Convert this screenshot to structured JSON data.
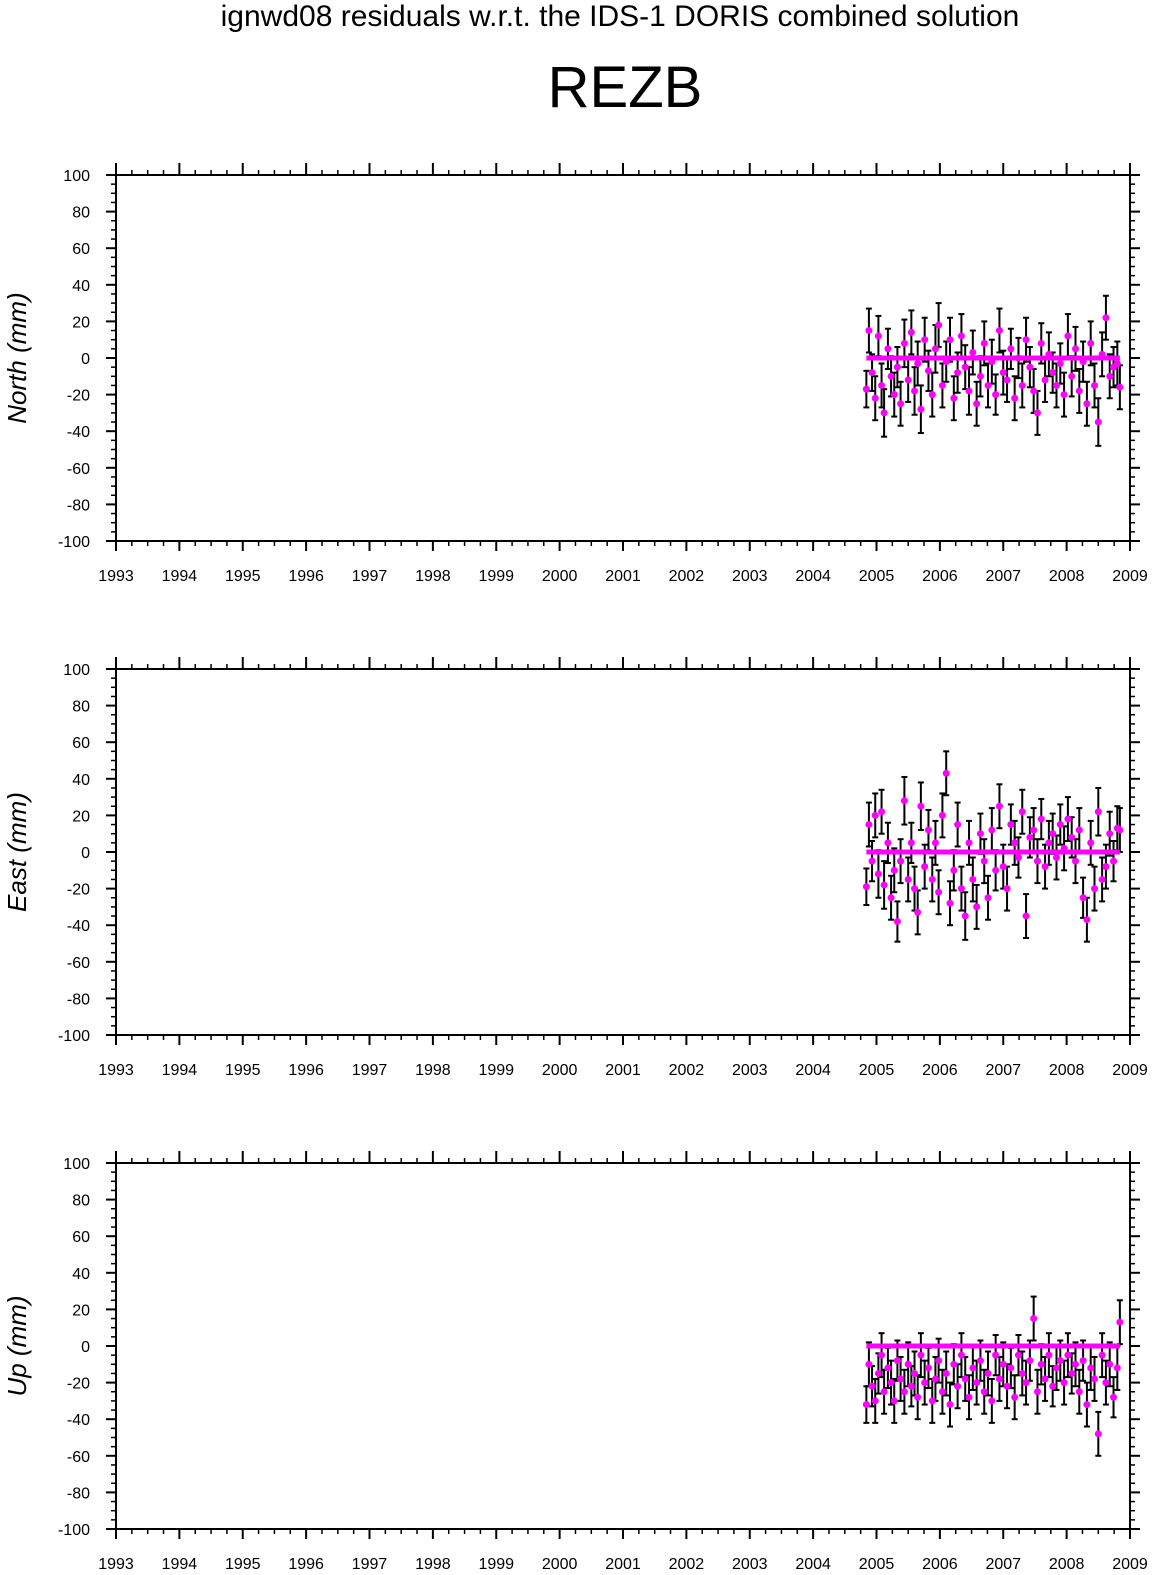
{
  "header": {
    "suptitle": "ignwd08 residuals w.r.t. the IDS-1 DORIS combined solution",
    "station": "REZB"
  },
  "colors": {
    "points": "#ff00ff",
    "errorbars": "#000000",
    "zero_line": "#ff00ff",
    "axes": "#000000"
  },
  "chart_data": [
    {
      "type": "scatter",
      "ylabel": "North (mm)",
      "xlim": [
        1993,
        2009
      ],
      "ylim": [
        -100,
        100
      ],
      "xticks": [
        "1993",
        "1994",
        "1995",
        "1996",
        "1997",
        "1998",
        "1999",
        "2000",
        "2001",
        "2002",
        "2003",
        "2004",
        "2005",
        "2006",
        "2007",
        "2008",
        "2009"
      ],
      "yticks": [
        "100",
        "80",
        "60",
        "40",
        "20",
        "0",
        "-20",
        "-40",
        "-60",
        "-80",
        "-100"
      ],
      "grid": false,
      "series": [
        {
          "x": [
            2004.84,
            2004.88,
            2004.93,
            2004.98,
            2005.03,
            2005.08,
            2005.12,
            2005.18,
            2005.23,
            2005.28,
            2005.33,
            2005.38,
            2005.44,
            2005.5,
            2005.55,
            2005.6,
            2005.65,
            2005.7,
            2005.76,
            2005.82,
            2005.88,
            2005.93,
            2005.98,
            2006.04,
            2006.1,
            2006.16,
            2006.22,
            2006.28,
            2006.34,
            2006.4,
            2006.46,
            2006.52,
            2006.58,
            2006.64,
            2006.7,
            2006.76,
            2006.82,
            2006.88,
            2006.94,
            2007.0,
            2007.06,
            2007.12,
            2007.18,
            2007.24,
            2007.3,
            2007.36,
            2007.42,
            2007.48,
            2007.54,
            2007.6,
            2007.66,
            2007.72,
            2007.78,
            2007.84,
            2007.9,
            2007.96,
            2008.02,
            2008.08,
            2008.14,
            2008.2,
            2008.26,
            2008.32,
            2008.38,
            2008.44,
            2008.5,
            2008.56,
            2008.62,
            2008.68,
            2008.74,
            2008.8,
            2008.84
          ],
          "y": [
            -17,
            15,
            -8,
            -22,
            12,
            -15,
            -30,
            5,
            -10,
            -20,
            -5,
            -25,
            8,
            -12,
            14,
            -18,
            -3,
            -28,
            10,
            -7,
            -20,
            5,
            18,
            -15,
            -2,
            10,
            -22,
            -8,
            12,
            -5,
            -18,
            3,
            -25,
            -10,
            8,
            -15,
            -2,
            -20,
            15,
            -8,
            -12,
            5,
            -22,
            0,
            -15,
            10,
            -5,
            -18,
            -30,
            8,
            -12,
            2,
            -8,
            -15,
            -3,
            -20,
            12,
            -10,
            5,
            -18,
            -2,
            -25,
            8,
            -15,
            -35,
            2,
            22,
            -10,
            -5,
            -3,
            -16
          ],
          "err": [
            10,
            12,
            10,
            12,
            11,
            12,
            13,
            11,
            11,
            12,
            11,
            12,
            13,
            12,
            12,
            13,
            12,
            13,
            12,
            11,
            12,
            13,
            12,
            12,
            11,
            12,
            12,
            11,
            12,
            12,
            13,
            12,
            12,
            11,
            12,
            12,
            12,
            11,
            12,
            12,
            12,
            11,
            12,
            11,
            12,
            12,
            11,
            12,
            12,
            11,
            12,
            12,
            11,
            12,
            11,
            12,
            12,
            11,
            12,
            12,
            11,
            12,
            12,
            12,
            13,
            12,
            12,
            12,
            11,
            12,
            12
          ]
        }
      ]
    },
    {
      "type": "scatter",
      "ylabel": "East (mm)",
      "xlim": [
        1993,
        2009
      ],
      "ylim": [
        -100,
        100
      ],
      "xticks": [
        "1993",
        "1994",
        "1995",
        "1996",
        "1997",
        "1998",
        "1999",
        "2000",
        "2001",
        "2002",
        "2003",
        "2004",
        "2005",
        "2006",
        "2007",
        "2008",
        "2009"
      ],
      "yticks": [
        "100",
        "80",
        "60",
        "40",
        "20",
        "0",
        "-20",
        "-40",
        "-60",
        "-80",
        "-100"
      ],
      "grid": false,
      "series": [
        {
          "x": [
            2004.84,
            2004.88,
            2004.93,
            2004.98,
            2005.03,
            2005.08,
            2005.12,
            2005.18,
            2005.23,
            2005.28,
            2005.33,
            2005.38,
            2005.44,
            2005.5,
            2005.55,
            2005.6,
            2005.65,
            2005.7,
            2005.76,
            2005.82,
            2005.88,
            2005.93,
            2005.98,
            2006.04,
            2006.1,
            2006.16,
            2006.22,
            2006.28,
            2006.34,
            2006.4,
            2006.46,
            2006.52,
            2006.58,
            2006.64,
            2006.7,
            2006.76,
            2006.82,
            2006.88,
            2006.94,
            2007.0,
            2007.06,
            2007.12,
            2007.18,
            2007.24,
            2007.3,
            2007.36,
            2007.42,
            2007.48,
            2007.54,
            2007.6,
            2007.66,
            2007.72,
            2007.78,
            2007.84,
            2007.9,
            2007.96,
            2008.02,
            2008.08,
            2008.14,
            2008.2,
            2008.26,
            2008.32,
            2008.38,
            2008.44,
            2008.5,
            2008.56,
            2008.62,
            2008.68,
            2008.74,
            2008.8,
            2008.84
          ],
          "y": [
            -19,
            15,
            -5,
            20,
            -12,
            22,
            -18,
            5,
            -25,
            -10,
            -38,
            -5,
            28,
            -15,
            5,
            -20,
            -33,
            25,
            -8,
            12,
            -15,
            5,
            -22,
            20,
            43,
            -28,
            -10,
            15,
            -20,
            -35,
            5,
            -15,
            -30,
            10,
            -5,
            -25,
            12,
            -10,
            25,
            -8,
            -20,
            15,
            5,
            -3,
            22,
            -35,
            8,
            12,
            -5,
            18,
            -8,
            5,
            10,
            -3,
            15,
            2,
            18,
            8,
            -5,
            12,
            -25,
            -37,
            5,
            -20,
            22,
            -15,
            -8,
            10,
            -5,
            13,
            12
          ],
          "err": [
            10,
            12,
            11,
            12,
            13,
            12,
            13,
            11,
            12,
            12,
            11,
            12,
            13,
            12,
            11,
            12,
            12,
            13,
            12,
            11,
            12,
            12,
            12,
            12,
            12,
            12,
            11,
            12,
            12,
            13,
            12,
            12,
            12,
            11,
            12,
            12,
            12,
            11,
            12,
            12,
            12,
            11,
            12,
            11,
            12,
            12,
            11,
            12,
            12,
            11,
            12,
            12,
            11,
            12,
            11,
            12,
            12,
            11,
            12,
            12,
            11,
            12,
            12,
            12,
            13,
            12,
            12,
            12,
            11,
            12,
            12
          ]
        }
      ]
    },
    {
      "type": "scatter",
      "ylabel": "Up (mm)",
      "xlim": [
        1993,
        2009
      ],
      "ylim": [
        -100,
        100
      ],
      "xticks": [
        "1993",
        "1994",
        "1995",
        "1996",
        "1997",
        "1998",
        "1999",
        "2000",
        "2001",
        "2002",
        "2003",
        "2004",
        "2005",
        "2006",
        "2007",
        "2008",
        "2009"
      ],
      "yticks": [
        "100",
        "80",
        "60",
        "40",
        "20",
        "0",
        "-20",
        "-40",
        "-60",
        "-80",
        "-100"
      ],
      "grid": false,
      "series": [
        {
          "x": [
            2004.84,
            2004.88,
            2004.93,
            2004.98,
            2005.03,
            2005.08,
            2005.12,
            2005.18,
            2005.23,
            2005.28,
            2005.33,
            2005.38,
            2005.44,
            2005.5,
            2005.55,
            2005.6,
            2005.65,
            2005.7,
            2005.76,
            2005.82,
            2005.88,
            2005.93,
            2005.98,
            2006.04,
            2006.1,
            2006.16,
            2006.22,
            2006.28,
            2006.34,
            2006.4,
            2006.46,
            2006.52,
            2006.58,
            2006.64,
            2006.7,
            2006.76,
            2006.82,
            2006.88,
            2006.94,
            2007.0,
            2007.06,
            2007.12,
            2007.18,
            2007.24,
            2007.3,
            2007.36,
            2007.42,
            2007.48,
            2007.54,
            2007.6,
            2007.66,
            2007.72,
            2007.78,
            2007.84,
            2007.9,
            2007.96,
            2008.02,
            2008.08,
            2008.14,
            2008.2,
            2008.26,
            2008.32,
            2008.38,
            2008.44,
            2008.5,
            2008.56,
            2008.62,
            2008.68,
            2008.74,
            2008.8,
            2008.84
          ],
          "y": [
            -32,
            -10,
            -22,
            -30,
            -15,
            -5,
            -25,
            -12,
            -20,
            -30,
            -8,
            -18,
            -25,
            -10,
            -22,
            -15,
            -28,
            -5,
            -20,
            -12,
            -30,
            -18,
            -8,
            -25,
            -15,
            -32,
            -10,
            -22,
            -5,
            -18,
            -28,
            -12,
            -20,
            -8,
            -25,
            -15,
            -30,
            -5,
            -18,
            -10,
            -22,
            -12,
            -28,
            -5,
            -15,
            -20,
            -8,
            15,
            -25,
            -10,
            -18,
            -5,
            -22,
            -12,
            -8,
            -20,
            -5,
            -15,
            -10,
            -25,
            -8,
            -32,
            -12,
            -18,
            -48,
            -5,
            -20,
            -10,
            -28,
            -12,
            13
          ],
          "err": [
            10,
            12,
            11,
            12,
            11,
            12,
            12,
            11,
            12,
            12,
            11,
            12,
            12,
            12,
            11,
            12,
            12,
            12,
            12,
            11,
            12,
            12,
            12,
            12,
            12,
            12,
            11,
            12,
            12,
            12,
            12,
            12,
            12,
            11,
            12,
            12,
            12,
            11,
            12,
            12,
            12,
            11,
            12,
            11,
            12,
            12,
            11,
            12,
            12,
            11,
            12,
            12,
            11,
            12,
            11,
            12,
            12,
            11,
            12,
            12,
            11,
            12,
            12,
            12,
            12,
            12,
            12,
            12,
            11,
            12,
            12
          ]
        }
      ]
    }
  ]
}
